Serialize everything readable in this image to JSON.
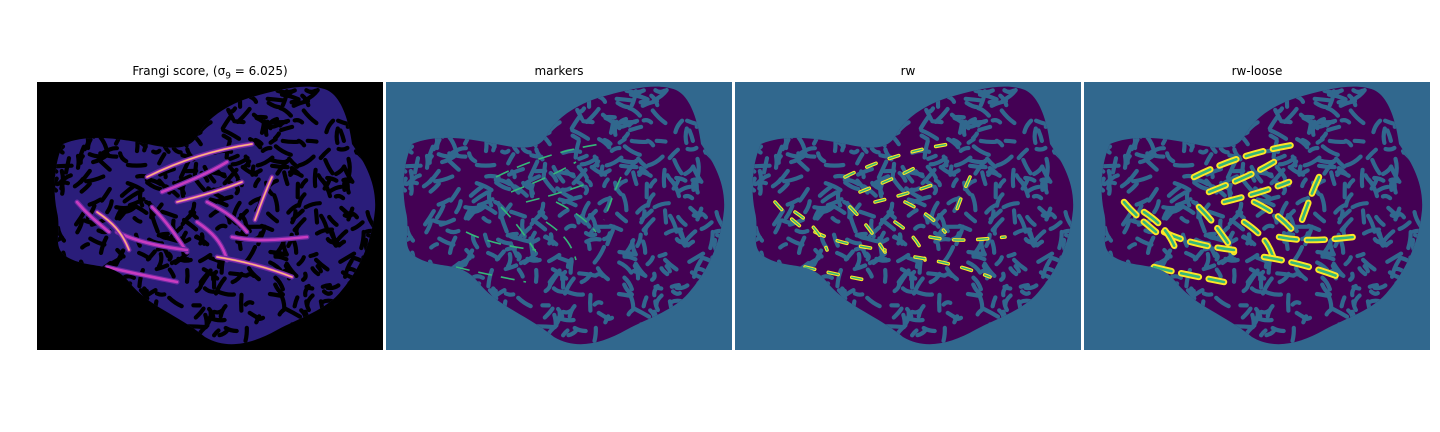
{
  "panels": [
    {
      "title": "Frangi score, (σ",
      "title_sub": "9",
      "title_tail": " = 6.025)",
      "background": "#000000",
      "tissue": "#2a1d7a"
    },
    {
      "title": "markers",
      "background": "#31688e",
      "tissue": "#440154"
    },
    {
      "title": "rw",
      "background": "#31688e",
      "tissue": "#440154"
    },
    {
      "title": "rw-loose",
      "background": "#31688e",
      "tissue": "#440154"
    }
  ],
  "colors": {
    "frangi_ridge_low": "#6a2aa0",
    "frangi_ridge_mid": "#c83cc0",
    "frangi_ridge_high": "#fbb87a",
    "marker_stroke": "#35b779",
    "segment_yellow": "#fde725"
  }
}
